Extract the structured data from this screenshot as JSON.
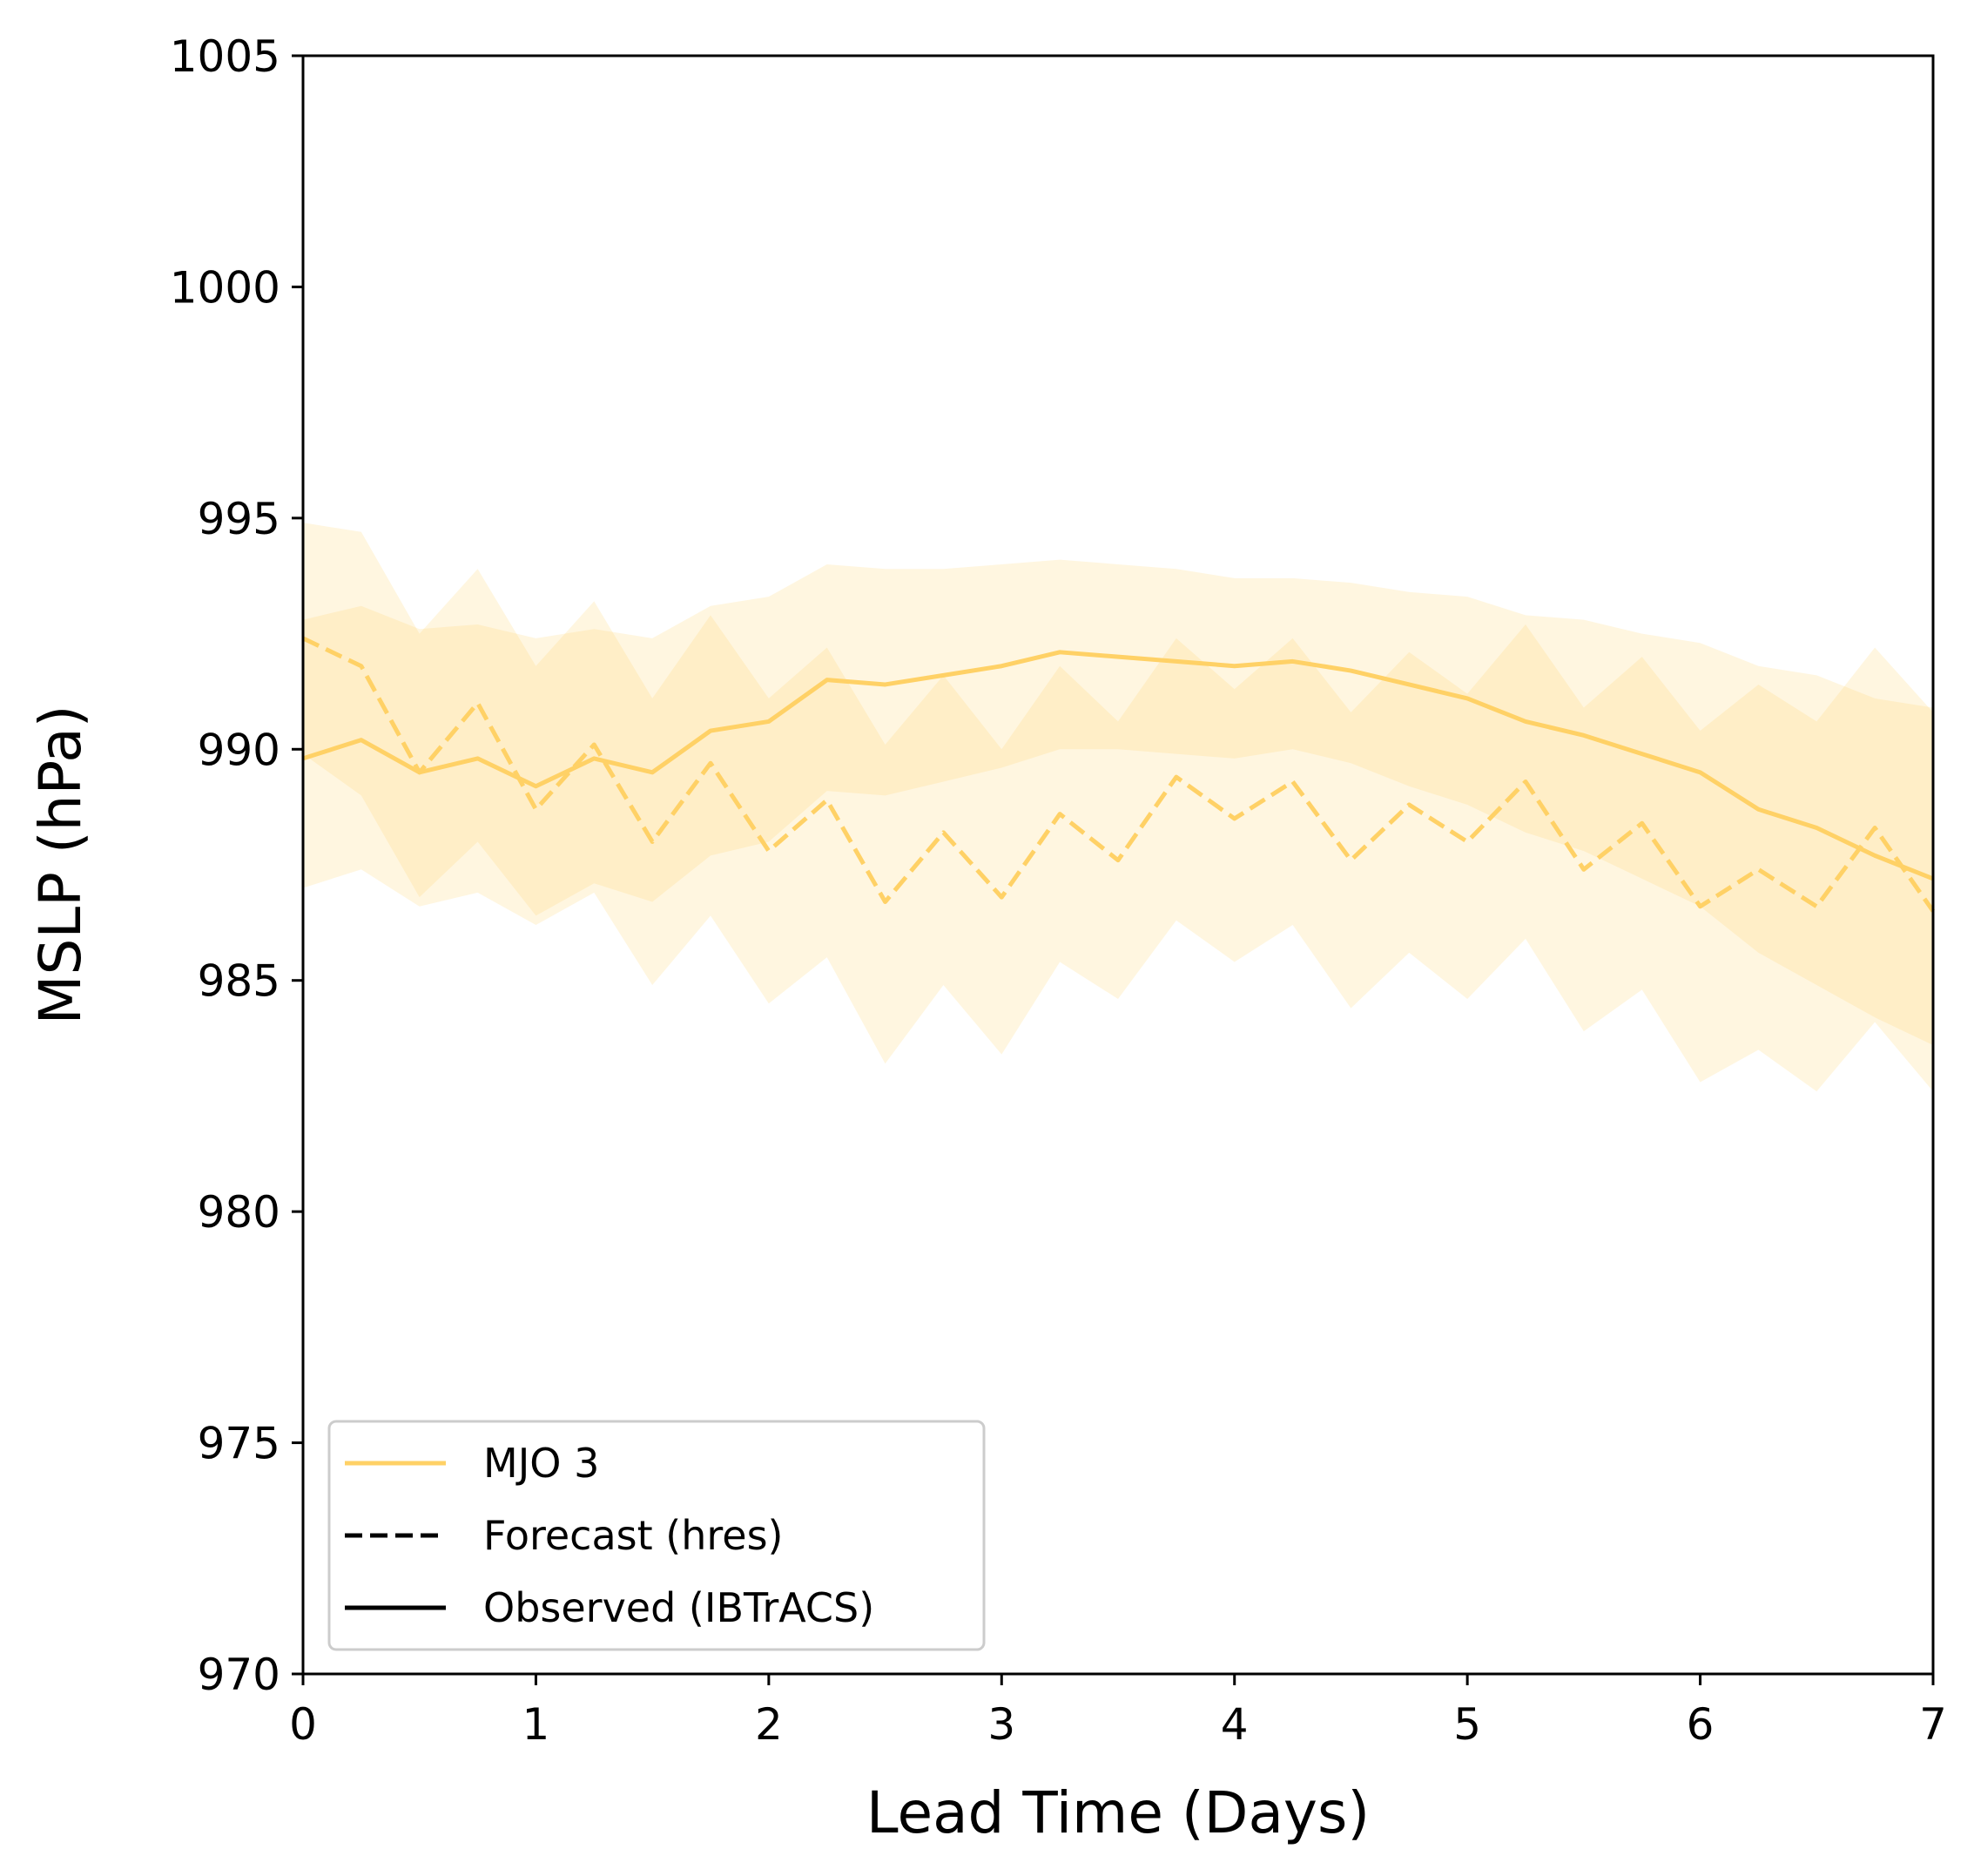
{
  "chart_data": {
    "type": "line",
    "xlabel": "Lead Time (Days)",
    "ylabel": "MSLP (hPa)",
    "xlim": [
      0,
      7
    ],
    "ylim": [
      970,
      1005
    ],
    "xticks": [
      "0",
      "1",
      "2",
      "3",
      "4",
      "5",
      "6",
      "7"
    ],
    "yticks": [
      "970",
      "975",
      "980",
      "985",
      "990",
      "995",
      "1000",
      "1005"
    ],
    "grid": false,
    "legend_position": "lower-left",
    "color": "#ffd166",
    "x": [
      0,
      0.25,
      0.5,
      0.75,
      1,
      1.25,
      1.5,
      1.75,
      2,
      2.25,
      2.5,
      2.75,
      3,
      3.25,
      3.5,
      3.75,
      4,
      4.25,
      4.5,
      4.75,
      5,
      5.25,
      5.5,
      5.75,
      6,
      6.25,
      6.5,
      6.75,
      7
    ],
    "series": [
      {
        "name": "MJO 3",
        "style": "solid",
        "values": [
          989.8,
          990.2,
          989.5,
          989.8,
          989.2,
          989.8,
          989.5,
          990.4,
          990.6,
          991.5,
          991.4,
          991.6,
          991.8,
          992.1,
          992.0,
          991.9,
          991.8,
          991.9,
          991.7,
          991.4,
          991.1,
          990.6,
          990.3,
          989.9,
          989.5,
          988.7,
          988.3,
          987.7,
          987.2
        ]
      },
      {
        "name": "MJO 3",
        "style": "dashed",
        "values": [
          992.4,
          991.8,
          989.5,
          991.0,
          988.7,
          990.1,
          988.0,
          989.7,
          987.8,
          988.9,
          986.7,
          988.2,
          986.8,
          988.6,
          987.6,
          989.4,
          988.5,
          989.3,
          987.6,
          988.8,
          988.0,
          989.3,
          987.4,
          988.4,
          986.6,
          987.4,
          986.6,
          988.3,
          986.5
        ]
      }
    ],
    "bands": [
      {
        "role": "outer",
        "upper": [
          994.9,
          994.7,
          992.5,
          993.9,
          991.8,
          993.2,
          991.1,
          992.9,
          991.1,
          992.2,
          990.1,
          991.6,
          990.0,
          991.8,
          990.6,
          992.4,
          991.3,
          992.4,
          990.8,
          992.1,
          991.2,
          992.7,
          990.9,
          992.0,
          990.4,
          991.4,
          990.6,
          992.2,
          990.8
        ],
        "lower": [
          987.0,
          987.4,
          986.6,
          986.9,
          986.2,
          986.9,
          984.9,
          986.4,
          984.5,
          985.5,
          983.2,
          984.9,
          983.4,
          985.4,
          984.6,
          986.3,
          985.4,
          986.2,
          984.4,
          985.6,
          984.6,
          985.9,
          983.9,
          984.8,
          982.8,
          983.5,
          982.6,
          984.1,
          982.6
        ]
      },
      {
        "role": "inner",
        "upper": [
          992.8,
          993.1,
          992.6,
          992.7,
          992.4,
          992.6,
          992.4,
          993.1,
          993.3,
          994.0,
          993.9,
          993.9,
          994.0,
          994.1,
          994.0,
          993.9,
          993.7,
          993.7,
          993.6,
          993.4,
          993.3,
          992.9,
          992.8,
          992.5,
          992.3,
          991.8,
          991.6,
          991.1,
          990.9
        ],
        "lower": [
          989.9,
          989.0,
          986.8,
          988.0,
          986.4,
          987.1,
          986.7,
          987.7,
          988.0,
          989.1,
          989.0,
          989.3,
          989.6,
          990.0,
          990.0,
          989.9,
          989.8,
          990.0,
          989.7,
          989.2,
          988.8,
          988.2,
          987.8,
          987.2,
          986.6,
          985.6,
          984.9,
          984.2,
          983.6
        ]
      }
    ],
    "legend": [
      {
        "label": "MJO 3",
        "style": "solid",
        "color": "#ffd166"
      },
      {
        "label": "Forecast (hres)",
        "style": "dashed",
        "color": "#000000"
      },
      {
        "label": "Observed (IBTrACS)",
        "style": "solid",
        "color": "#000000"
      }
    ]
  }
}
